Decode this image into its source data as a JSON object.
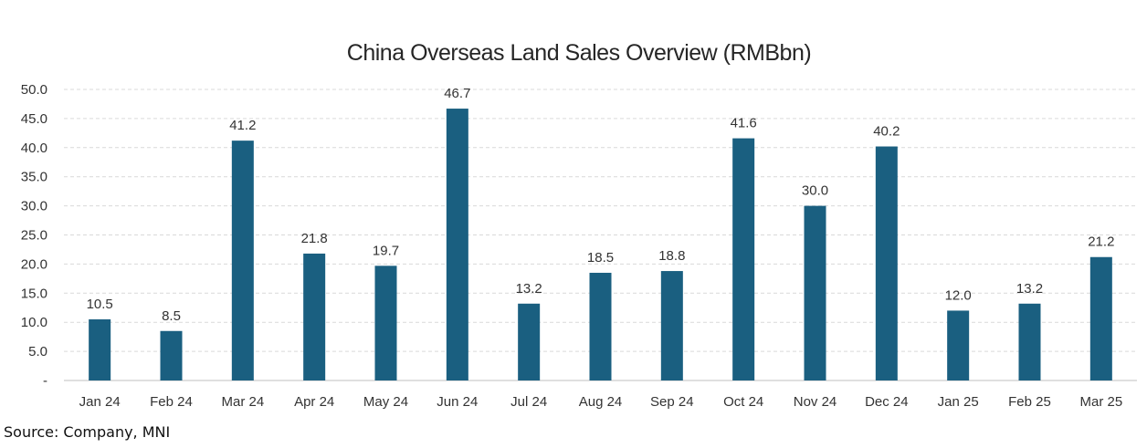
{
  "chart_data": {
    "type": "bar",
    "title": "China Overseas Land Sales Overview (RMBbn)",
    "categories": [
      "Jan 24",
      "Feb 24",
      "Mar 24",
      "Apr 24",
      "May 24",
      "Jun 24",
      "Jul 24",
      "Aug 24",
      "Sep 24",
      "Oct 24",
      "Nov 24",
      "Dec 24",
      "Jan 25",
      "Feb 25",
      "Mar 25"
    ],
    "values": [
      10.5,
      8.5,
      41.2,
      21.8,
      19.7,
      46.7,
      13.2,
      18.5,
      18.8,
      41.6,
      30.0,
      40.2,
      12.0,
      13.2,
      21.2
    ],
    "data_labels": [
      "10.5",
      "8.5",
      "41.2",
      "21.8",
      "19.7",
      "46.7",
      "13.2",
      "18.5",
      "18.8",
      "41.6",
      "30.0",
      "40.2",
      "12.0",
      "13.2",
      "21.2"
    ],
    "y_ticks": [
      "-",
      "5.0",
      "10.0",
      "15.0",
      "20.0",
      "25.0",
      "30.0",
      "35.0",
      "40.0",
      "45.0",
      "50.0"
    ],
    "ylim": [
      0,
      50
    ],
    "xlabel": "",
    "ylabel": "",
    "grid": true,
    "legend": "none",
    "bar_color": "#1a5f80"
  },
  "source_note": "Source: Company, MNI"
}
